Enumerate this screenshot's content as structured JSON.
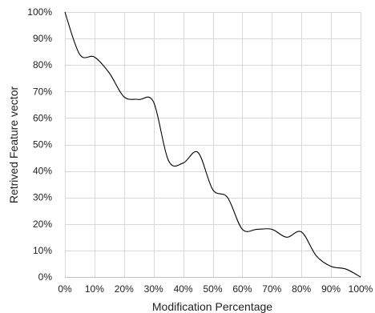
{
  "chart_data": {
    "type": "line",
    "xlabel": "Modification Percentage",
    "ylabel": "Retrived Feature vector",
    "xlim": [
      0,
      100
    ],
    "ylim": [
      0,
      100
    ],
    "x_ticks": [
      "0%",
      "10%",
      "20%",
      "30%",
      "40%",
      "50%",
      "60%",
      "70%",
      "80%",
      "90%",
      "100%"
    ],
    "y_ticks": [
      "0%",
      "10%",
      "20%",
      "30%",
      "40%",
      "50%",
      "60%",
      "70%",
      "80%",
      "90%",
      "100%"
    ],
    "grid": true,
    "legend": "none",
    "series": [
      {
        "color": "#000000",
        "x": [
          0,
          5,
          10,
          15,
          20,
          25,
          30,
          35,
          40,
          45,
          50,
          55,
          60,
          65,
          70,
          75,
          80,
          85,
          90,
          95,
          100
        ],
        "y": [
          100,
          84,
          83,
          77,
          68,
          67,
          66,
          44,
          43,
          47,
          33,
          30,
          18,
          18,
          18,
          15,
          17,
          8,
          4,
          3,
          0
        ]
      }
    ]
  }
}
